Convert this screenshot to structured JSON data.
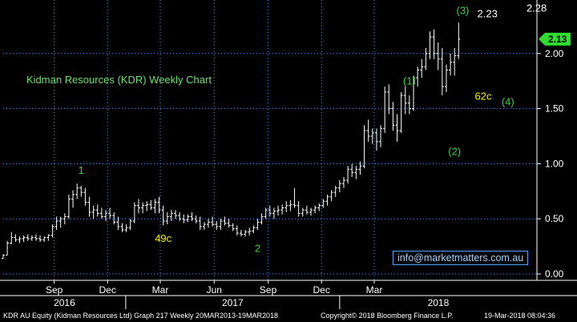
{
  "chart_data": {
    "type": "ohlc",
    "title": "Kidman Resources (KDR) Weekly Chart",
    "ylim": [
      0,
      2.35
    ],
    "yticks": [
      "0.00",
      "0.50",
      "1.00",
      "1.50",
      "2.00"
    ],
    "last_price": "2.13",
    "months": [
      {
        "label": "Sep",
        "date": "2016-09"
      },
      {
        "label": "Dec",
        "date": "2016-12"
      },
      {
        "label": "Mar",
        "date": "2017-03"
      },
      {
        "label": "Jun",
        "date": "2017-06"
      },
      {
        "label": "Sep",
        "date": "2017-09"
      },
      {
        "label": "Dec",
        "date": "2017-12"
      },
      {
        "label": "Mar",
        "date": "2018-03"
      }
    ],
    "years": [
      "2016",
      "2017",
      "2018"
    ],
    "annotations": [
      {
        "text": "1",
        "color": "#2fdc2f",
        "week": 19,
        "price": 0.91
      },
      {
        "text": "49c",
        "color": "#f2f200",
        "week": 39,
        "price": 0.29
      },
      {
        "text": "2",
        "color": "#2fdc2f",
        "week": 62,
        "price": 0.2
      },
      {
        "text": "(1)",
        "color": "#2fdc2f",
        "week": 99,
        "price": 1.72
      },
      {
        "text": "(2)",
        "color": "#2fdc2f",
        "week": 110,
        "price": 1.08
      },
      {
        "text": "62c",
        "color": "#f2f200",
        "week": 117,
        "price": 1.58
      },
      {
        "text": "(3)",
        "color": "#2fdc2f",
        "week": 112,
        "price": 2.36
      },
      {
        "text": "2.23",
        "color": "#ffffff",
        "week": 118,
        "price": 2.33
      },
      {
        "text": "(4)",
        "color": "#2fdc2f",
        "week": 123,
        "price": 1.53
      },
      {
        "text": "2.28",
        "color": "#ffffff",
        "week": 130,
        "price": 2.38
      }
    ],
    "weeks_start": "2016-06-06",
    "bars": [
      [
        0.14,
        0.18,
        0.14,
        0.17
      ],
      [
        0.17,
        0.3,
        0.17,
        0.28
      ],
      [
        0.28,
        0.38,
        0.27,
        0.33
      ],
      [
        0.33,
        0.36,
        0.29,
        0.31
      ],
      [
        0.31,
        0.34,
        0.28,
        0.32
      ],
      [
        0.32,
        0.35,
        0.29,
        0.33
      ],
      [
        0.33,
        0.36,
        0.3,
        0.32
      ],
      [
        0.32,
        0.35,
        0.3,
        0.33
      ],
      [
        0.33,
        0.36,
        0.3,
        0.32
      ],
      [
        0.32,
        0.35,
        0.29,
        0.31
      ],
      [
        0.31,
        0.34,
        0.29,
        0.33
      ],
      [
        0.33,
        0.36,
        0.3,
        0.35
      ],
      [
        0.35,
        0.45,
        0.33,
        0.43
      ],
      [
        0.43,
        0.52,
        0.4,
        0.48
      ],
      [
        0.48,
        0.52,
        0.42,
        0.5
      ],
      [
        0.5,
        0.55,
        0.45,
        0.52
      ],
      [
        0.52,
        0.72,
        0.5,
        0.68
      ],
      [
        0.68,
        0.76,
        0.6,
        0.72
      ],
      [
        0.72,
        0.82,
        0.68,
        0.78
      ],
      [
        0.78,
        0.8,
        0.7,
        0.74
      ],
      [
        0.74,
        0.78,
        0.62,
        0.65
      ],
      [
        0.65,
        0.7,
        0.52,
        0.56
      ],
      [
        0.56,
        0.62,
        0.5,
        0.58
      ],
      [
        0.58,
        0.63,
        0.52,
        0.55
      ],
      [
        0.55,
        0.6,
        0.5,
        0.52
      ],
      [
        0.52,
        0.58,
        0.48,
        0.55
      ],
      [
        0.55,
        0.6,
        0.5,
        0.53
      ],
      [
        0.53,
        0.56,
        0.45,
        0.47
      ],
      [
        0.47,
        0.52,
        0.4,
        0.43
      ],
      [
        0.43,
        0.46,
        0.38,
        0.4
      ],
      [
        0.4,
        0.45,
        0.38,
        0.42
      ],
      [
        0.42,
        0.5,
        0.4,
        0.48
      ],
      [
        0.48,
        0.65,
        0.46,
        0.62
      ],
      [
        0.62,
        0.68,
        0.55,
        0.6
      ],
      [
        0.6,
        0.65,
        0.55,
        0.62
      ],
      [
        0.62,
        0.66,
        0.57,
        0.63
      ],
      [
        0.63,
        0.67,
        0.58,
        0.6
      ],
      [
        0.6,
        0.68,
        0.55,
        0.65
      ],
      [
        0.65,
        0.7,
        0.55,
        0.58
      ],
      [
        0.58,
        0.62,
        0.44,
        0.48
      ],
      [
        0.48,
        0.56,
        0.45,
        0.52
      ],
      [
        0.52,
        0.58,
        0.48,
        0.55
      ],
      [
        0.55,
        0.58,
        0.5,
        0.53
      ],
      [
        0.53,
        0.56,
        0.48,
        0.5
      ],
      [
        0.5,
        0.54,
        0.46,
        0.49
      ],
      [
        0.49,
        0.54,
        0.47,
        0.52
      ],
      [
        0.52,
        0.56,
        0.48,
        0.5
      ],
      [
        0.5,
        0.53,
        0.46,
        0.48
      ],
      [
        0.48,
        0.52,
        0.4,
        0.43
      ],
      [
        0.43,
        0.47,
        0.4,
        0.45
      ],
      [
        0.45,
        0.5,
        0.42,
        0.47
      ],
      [
        0.47,
        0.52,
        0.43,
        0.45
      ],
      [
        0.45,
        0.48,
        0.4,
        0.43
      ],
      [
        0.43,
        0.5,
        0.4,
        0.48
      ],
      [
        0.48,
        0.52,
        0.44,
        0.46
      ],
      [
        0.46,
        0.5,
        0.42,
        0.44
      ],
      [
        0.44,
        0.46,
        0.39,
        0.41
      ],
      [
        0.41,
        0.44,
        0.35,
        0.37
      ],
      [
        0.37,
        0.4,
        0.34,
        0.36
      ],
      [
        0.36,
        0.4,
        0.34,
        0.38
      ],
      [
        0.38,
        0.42,
        0.35,
        0.39
      ],
      [
        0.39,
        0.44,
        0.37,
        0.42
      ],
      [
        0.42,
        0.5,
        0.4,
        0.47
      ],
      [
        0.47,
        0.55,
        0.45,
        0.52
      ],
      [
        0.52,
        0.6,
        0.5,
        0.58
      ],
      [
        0.58,
        0.62,
        0.52,
        0.55
      ],
      [
        0.55,
        0.6,
        0.5,
        0.57
      ],
      [
        0.57,
        0.62,
        0.53,
        0.58
      ],
      [
        0.58,
        0.63,
        0.54,
        0.6
      ],
      [
        0.6,
        0.66,
        0.56,
        0.62
      ],
      [
        0.62,
        0.67,
        0.57,
        0.63
      ],
      [
        0.63,
        0.78,
        0.6,
        0.62
      ],
      [
        0.62,
        0.66,
        0.52,
        0.55
      ],
      [
        0.55,
        0.6,
        0.52,
        0.58
      ],
      [
        0.58,
        0.62,
        0.54,
        0.56
      ],
      [
        0.56,
        0.6,
        0.53,
        0.58
      ],
      [
        0.58,
        0.62,
        0.55,
        0.6
      ],
      [
        0.6,
        0.64,
        0.57,
        0.62
      ],
      [
        0.62,
        0.68,
        0.6,
        0.66
      ],
      [
        0.66,
        0.72,
        0.62,
        0.7
      ],
      [
        0.7,
        0.76,
        0.66,
        0.74
      ],
      [
        0.74,
        0.8,
        0.7,
        0.78
      ],
      [
        0.78,
        0.85,
        0.74,
        0.82
      ],
      [
        0.82,
        0.88,
        0.78,
        0.85
      ],
      [
        0.85,
        0.98,
        0.82,
        0.95
      ],
      [
        0.95,
        1.0,
        0.88,
        0.92
      ],
      [
        0.92,
        0.98,
        0.86,
        0.95
      ],
      [
        0.95,
        1.02,
        0.9,
        0.98
      ],
      [
        0.98,
        1.35,
        0.96,
        1.3
      ],
      [
        1.3,
        1.4,
        1.2,
        1.25
      ],
      [
        1.25,
        1.32,
        1.18,
        1.28
      ],
      [
        1.28,
        1.32,
        1.12,
        1.2
      ],
      [
        1.2,
        1.35,
        1.15,
        1.32
      ],
      [
        1.32,
        1.7,
        1.28,
        1.65
      ],
      [
        1.65,
        1.72,
        1.45,
        1.5
      ],
      [
        1.5,
        1.56,
        1.3,
        1.35
      ],
      [
        1.35,
        1.45,
        1.2,
        1.3
      ],
      [
        1.3,
        1.65,
        1.28,
        1.62
      ],
      [
        1.62,
        1.7,
        1.45,
        1.55
      ],
      [
        1.55,
        1.62,
        1.45,
        1.5
      ],
      [
        1.5,
        1.8,
        1.48,
        1.78
      ],
      [
        1.78,
        1.88,
        1.7,
        1.85
      ],
      [
        1.85,
        1.95,
        1.78,
        1.88
      ],
      [
        1.88,
        2.05,
        1.85,
        2.0
      ],
      [
        2.0,
        2.2,
        1.95,
        2.15
      ],
      [
        2.15,
        2.22,
        1.95,
        2.0
      ],
      [
        2.0,
        2.1,
        1.85,
        1.95
      ],
      [
        1.95,
        2.05,
        1.62,
        1.7
      ],
      [
        1.7,
        1.9,
        1.65,
        1.85
      ],
      [
        1.85,
        2.0,
        1.8,
        1.92
      ],
      [
        1.92,
        2.05,
        1.8,
        1.98
      ],
      [
        1.98,
        2.28,
        1.95,
        2.13
      ]
    ]
  },
  "footer": {
    "left": "KDR AU Equity (Kidman Resources Ltd) Graph 217  Weekly 20MAR2013-19MAR2018",
    "center": "Copyright© 2018 Bloomberg Finance L.P.",
    "right": "19-Mar-2018 08:04:36"
  },
  "site": "info@marketmatters.com.au",
  "colors": {
    "grid": "#4a9bff",
    "bars": "#ffffff",
    "title": "#6de06d",
    "price_tag": "#2fdc2f",
    "link": "#9fd3ff"
  }
}
